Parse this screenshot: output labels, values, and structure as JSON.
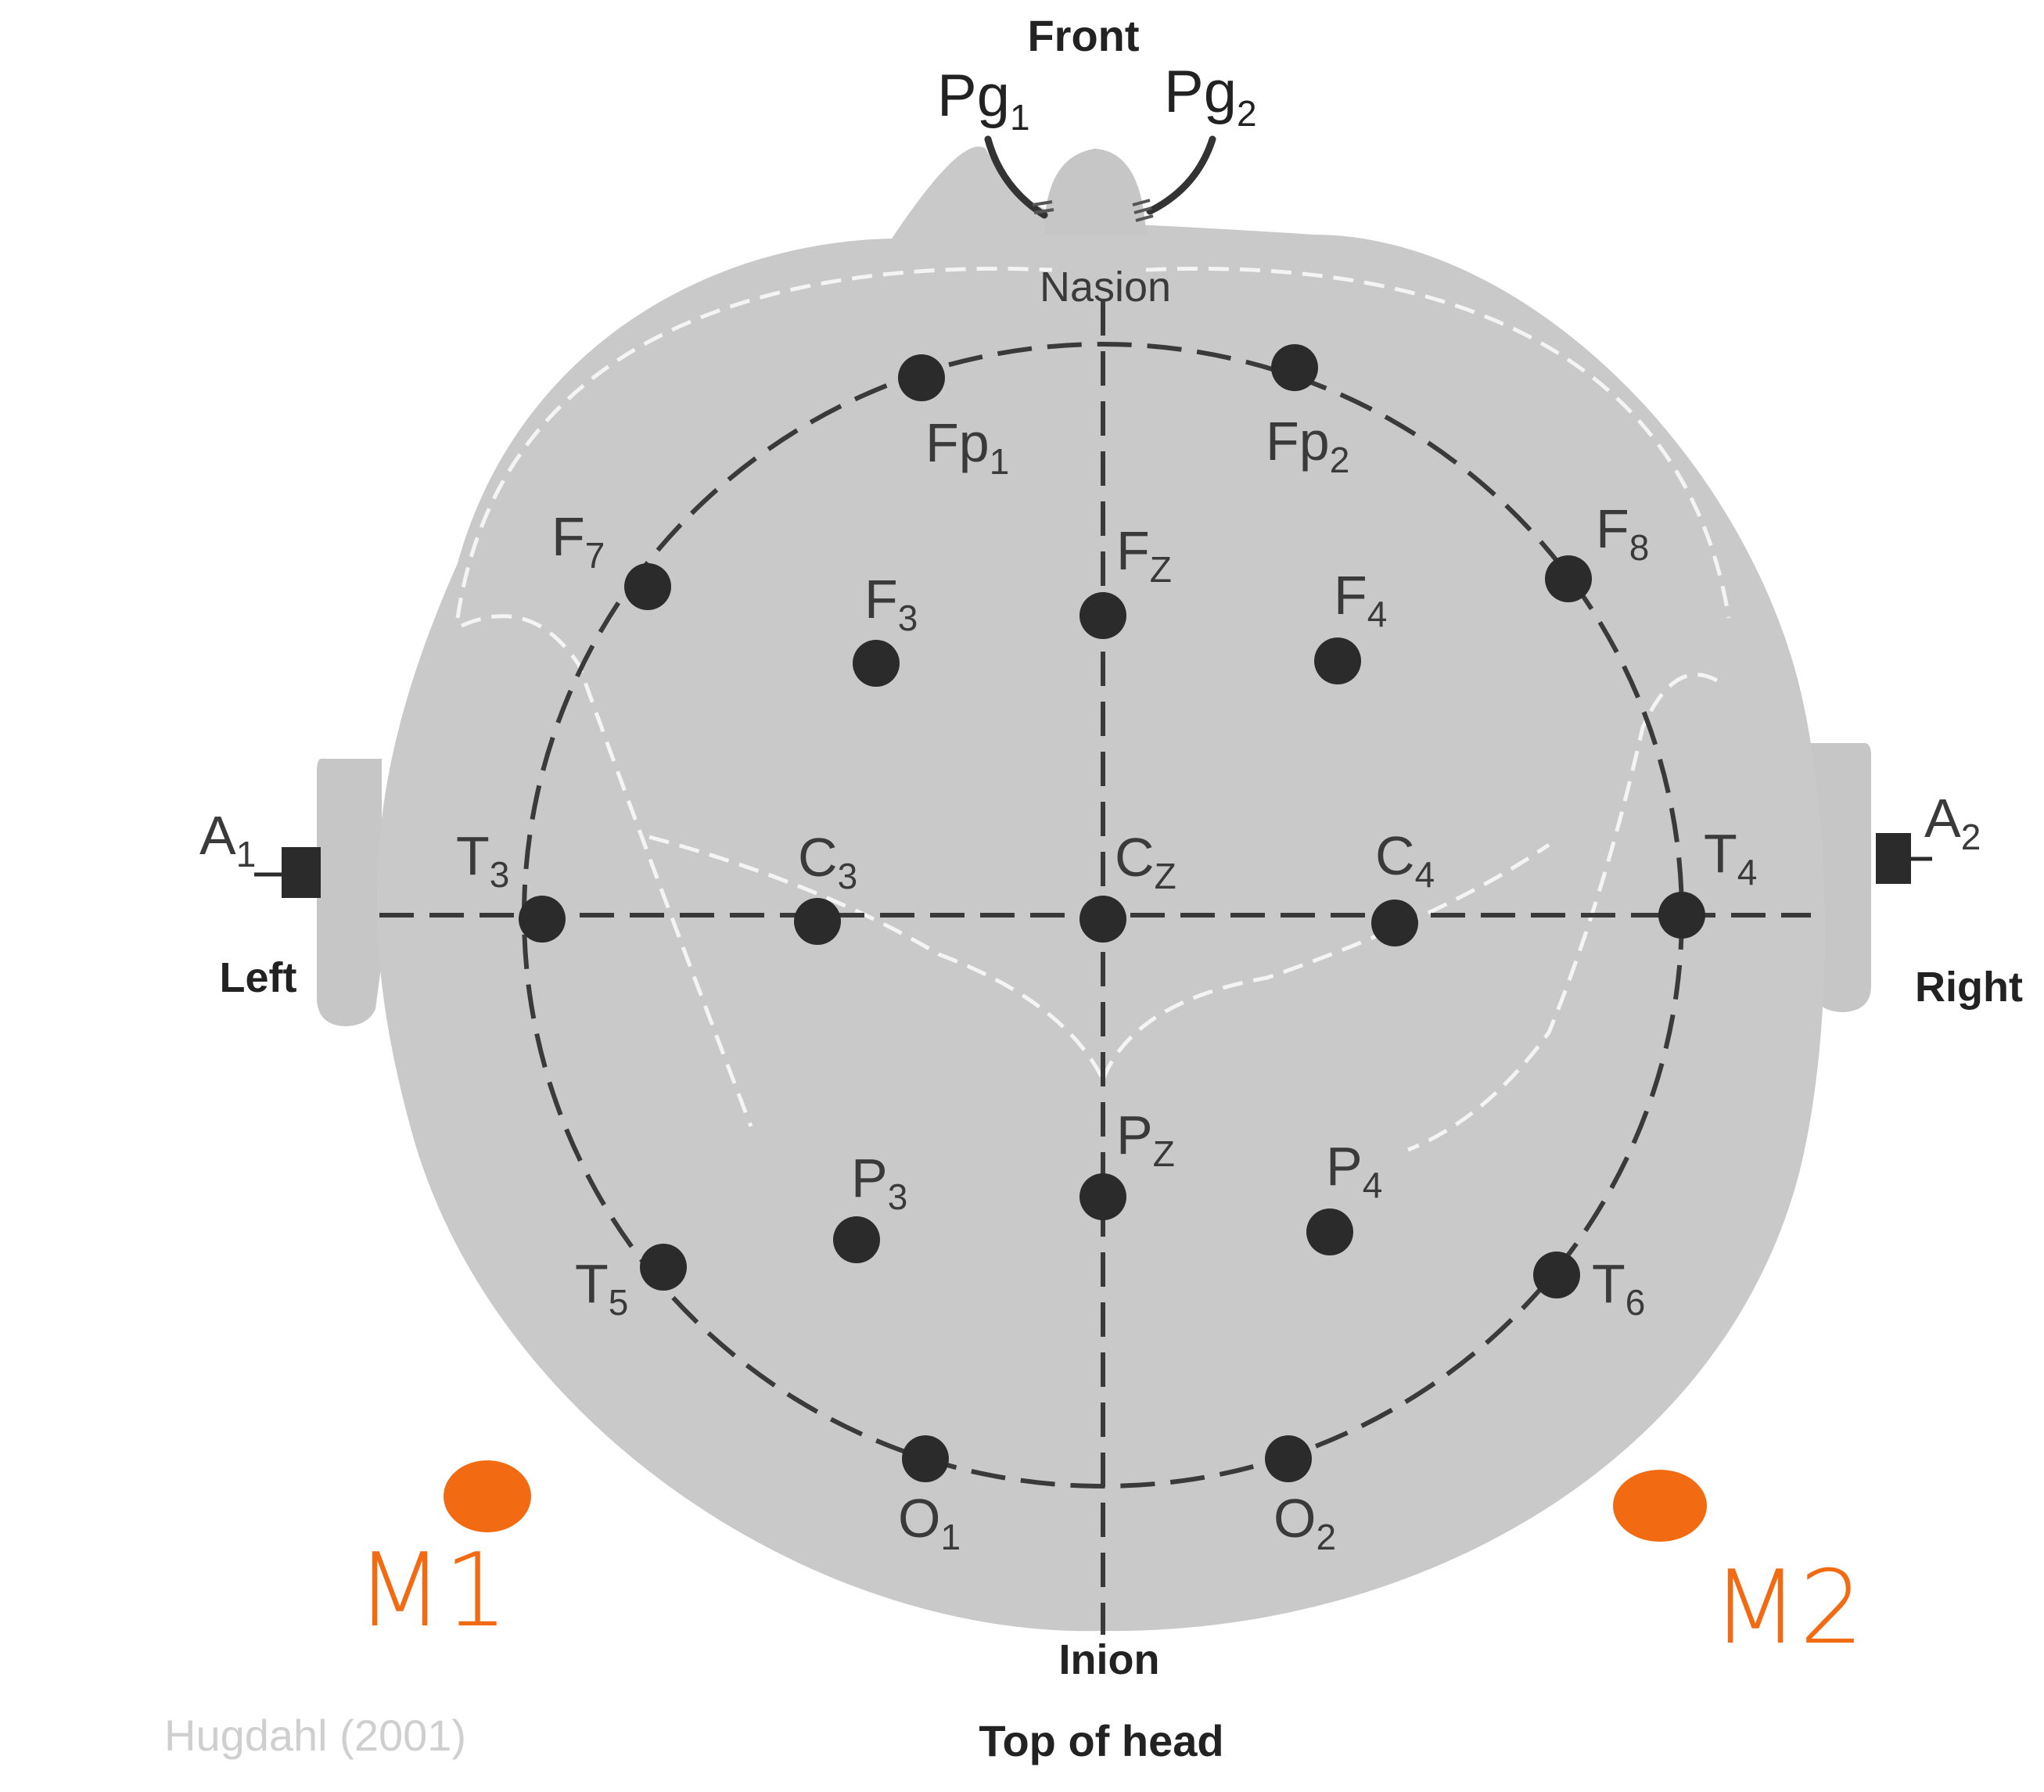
{
  "orientation": {
    "front": "Front",
    "nasion": "Nasion",
    "inion": "Inion",
    "left": "Left",
    "right": "Right",
    "top_of_head": "Top of head"
  },
  "electrodes": [
    {
      "id": "pg1",
      "base": "Pg",
      "sub": "1"
    },
    {
      "id": "pg2",
      "base": "Pg",
      "sub": "2"
    },
    {
      "id": "fp1",
      "base": "Fp",
      "sub": "1"
    },
    {
      "id": "fp2",
      "base": "Fp",
      "sub": "2"
    },
    {
      "id": "f7",
      "base": "F",
      "sub": "7"
    },
    {
      "id": "f8",
      "base": "F",
      "sub": "8"
    },
    {
      "id": "f3",
      "base": "F",
      "sub": "3"
    },
    {
      "id": "fz",
      "base": "F",
      "sub": "Z"
    },
    {
      "id": "f4",
      "base": "F",
      "sub": "4"
    },
    {
      "id": "a1",
      "base": "A",
      "sub": "1"
    },
    {
      "id": "a2",
      "base": "A",
      "sub": "2"
    },
    {
      "id": "t3",
      "base": "T",
      "sub": "3"
    },
    {
      "id": "c3",
      "base": "C",
      "sub": "3"
    },
    {
      "id": "cz",
      "base": "C",
      "sub": "Z"
    },
    {
      "id": "c4",
      "base": "C",
      "sub": "4"
    },
    {
      "id": "t4",
      "base": "T",
      "sub": "4"
    },
    {
      "id": "p3",
      "base": "P",
      "sub": "3"
    },
    {
      "id": "pz",
      "base": "P",
      "sub": "Z"
    },
    {
      "id": "p4",
      "base": "P",
      "sub": "4"
    },
    {
      "id": "t5",
      "base": "T",
      "sub": "5"
    },
    {
      "id": "t6",
      "base": "T",
      "sub": "6"
    },
    {
      "id": "o1",
      "base": "O",
      "sub": "1"
    },
    {
      "id": "o2",
      "base": "O",
      "sub": "2"
    }
  ],
  "annotations": {
    "m1": "M1",
    "m2": "M2",
    "marker_color": "#f26a12"
  },
  "credit": "Hugdahl (2001)",
  "colors": {
    "head_fill": "#c9c9c9",
    "electrode": "#2b2b2b",
    "dashed_line": "#3a3a3a",
    "contour": "#f4f4f4"
  }
}
